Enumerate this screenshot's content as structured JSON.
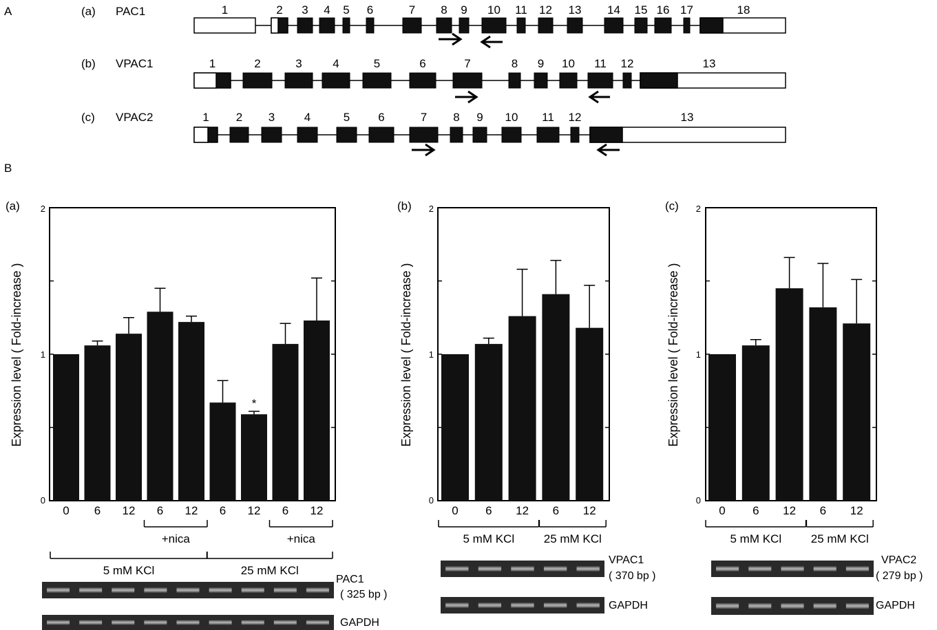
{
  "panel_A": {
    "label": "A",
    "genes": [
      {
        "tag": "(a)",
        "name": "PAC1",
        "exon_numbers": [
          "1",
          "2",
          "3",
          "4",
          "5",
          "6",
          "7",
          "8",
          "9",
          "10",
          "11",
          "12",
          "13",
          "14",
          "15",
          "16",
          "17",
          "18"
        ]
      },
      {
        "tag": "(b)",
        "name": "VPAC1",
        "exon_numbers": [
          "1",
          "2",
          "3",
          "4",
          "5",
          "6",
          "7",
          "8",
          "9",
          "10",
          "11",
          "12",
          "13"
        ]
      },
      {
        "tag": "(c)",
        "name": "VPAC2",
        "exon_numbers": [
          "1",
          "2",
          "3",
          "4",
          "5",
          "6",
          "7",
          "8",
          "9",
          "10",
          "11",
          "12",
          "13"
        ]
      }
    ]
  },
  "panel_B": {
    "label": "B"
  },
  "chart_data": [
    {
      "type": "bar",
      "panel_tag": "(a)",
      "ylabel": "Expression level ( Fold-increase )",
      "ylim": [
        0,
        2
      ],
      "ytick_labels": [
        "0",
        "1",
        "2"
      ],
      "categories": [
        "0",
        "6",
        "12",
        "6",
        "12",
        "6",
        "12",
        "6",
        "12"
      ],
      "values": [
        1.0,
        1.06,
        1.14,
        1.29,
        1.22,
        0.67,
        0.59,
        1.07,
        1.23
      ],
      "errors": [
        0.0,
        0.03,
        0.11,
        0.16,
        0.04,
        0.15,
        0.02,
        0.14,
        0.29
      ],
      "significance": [
        {
          "index": 6,
          "symbol": "*"
        }
      ],
      "group_labels": [
        {
          "label": "+nica",
          "from": 3,
          "to": 4,
          "row": 1
        },
        {
          "label": "+nica",
          "from": 7,
          "to": 8,
          "row": 1
        },
        {
          "label": "5 mM KCl",
          "from": 0,
          "to": 4,
          "row": 2
        },
        {
          "label": "25 mM KCl",
          "from": 5,
          "to": 8,
          "row": 2
        }
      ],
      "gel_labels": [
        "PAC1",
        "( 325 bp )",
        "GAPDH"
      ]
    },
    {
      "type": "bar",
      "panel_tag": "(b)",
      "ylabel": "Expression level ( Fold-increase )",
      "ylim": [
        0,
        2
      ],
      "ytick_labels": [
        "0",
        "1",
        "2"
      ],
      "categories": [
        "0",
        "6",
        "12",
        "6",
        "12"
      ],
      "values": [
        1.0,
        1.07,
        1.26,
        1.41,
        1.18
      ],
      "errors": [
        0.0,
        0.04,
        0.32,
        0.23,
        0.29
      ],
      "significance": [],
      "group_labels": [
        {
          "label": "5 mM KCl",
          "from": 0,
          "to": 2,
          "row": 1
        },
        {
          "label": "25 mM KCl",
          "from": 3,
          "to": 4,
          "row": 1
        }
      ],
      "gel_labels": [
        "VPAC1",
        "( 370 bp )",
        "GAPDH"
      ]
    },
    {
      "type": "bar",
      "panel_tag": "(c)",
      "ylabel": "Expression level ( Fold-increase )",
      "ylim": [
        0,
        2
      ],
      "ytick_labels": [
        "0",
        "1",
        "2"
      ],
      "categories": [
        "0",
        "6",
        "12",
        "6",
        "12"
      ],
      "values": [
        1.0,
        1.06,
        1.45,
        1.32,
        1.21
      ],
      "errors": [
        0.0,
        0.04,
        0.21,
        0.3,
        0.3
      ],
      "significance": [],
      "group_labels": [
        {
          "label": "5 mM KCl",
          "from": 0,
          "to": 2,
          "row": 1
        },
        {
          "label": "25 mM KCl",
          "from": 3,
          "to": 4,
          "row": 1
        }
      ],
      "gel_labels": [
        "VPAC2",
        "( 279 bp )",
        "GAPDH"
      ]
    }
  ]
}
